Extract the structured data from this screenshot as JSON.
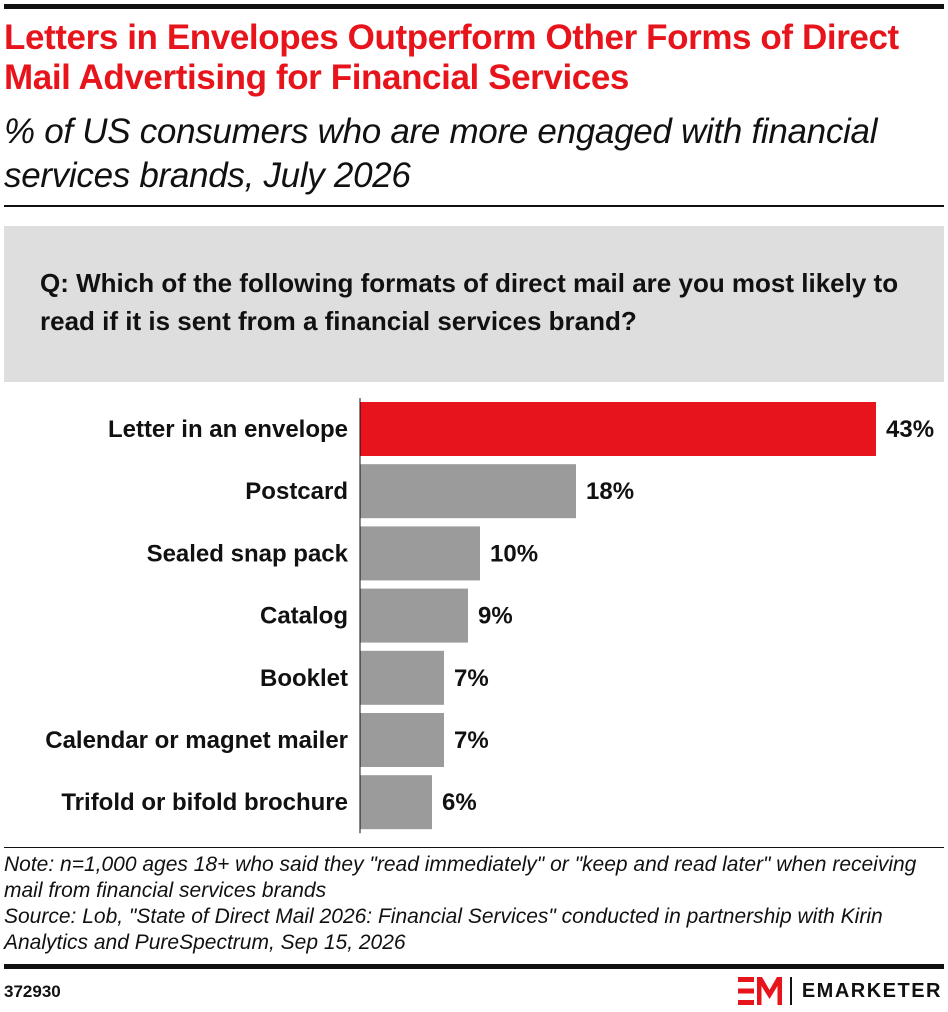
{
  "header": {
    "title": "Letters in Envelopes Outperform Other Forms of Direct Mail Advertising for Financial Services",
    "subtitle": "% of US consumers who are more engaged with financial services brands, July 2026"
  },
  "question": "Q: Which of the following formats of direct mail are you most likely to read if it is sent from a financial services brand?",
  "chart_data": {
    "type": "bar",
    "orientation": "horizontal",
    "categories": [
      "Letter in an envelope",
      "Postcard",
      "Sealed snap pack",
      "Catalog",
      "Booklet",
      "Calendar or magnet mailer",
      "Trifold or bifold brochure"
    ],
    "values": [
      43,
      18,
      10,
      9,
      7,
      7,
      6
    ],
    "value_labels": [
      "43%",
      "18%",
      "10%",
      "9%",
      "7%",
      "7%",
      "6%"
    ],
    "unit": "%",
    "xlim": [
      0,
      43
    ],
    "highlight_index": 0,
    "colors": {
      "highlight": "#e8141c",
      "default": "#9b9b9b"
    },
    "grid": false,
    "legend": "none"
  },
  "footer": {
    "note": "Note: n=1,000 ages 18+ who said they \"read immediately\" or \"keep and read later\" when receiving mail from financial services brands",
    "source": "Source: Lob, \"State of Direct Mail 2026: Financial Services\" conducted in partnership with Kirin Analytics and PureSpectrum, Sep 15, 2026",
    "chart_id": "372930",
    "brand": "EMARKETER",
    "brand_color": "#e8141c"
  }
}
